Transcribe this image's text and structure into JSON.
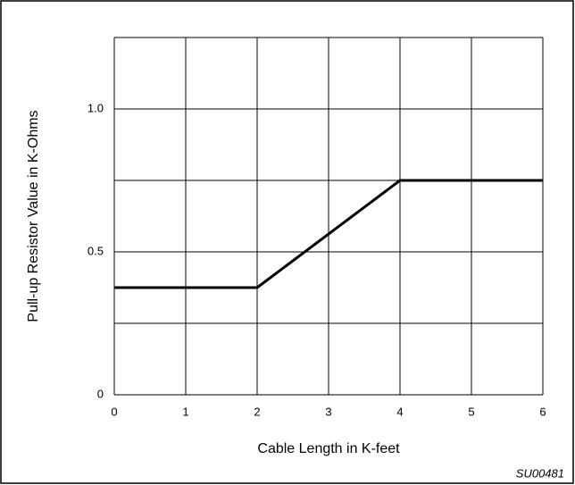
{
  "chart_data": {
    "type": "line",
    "x_label": "Cable Length in K-feet",
    "y_label": "Pull-up Resistor Value in K-Ohms",
    "annotation": "SU00481",
    "x": [
      0,
      2,
      4,
      6
    ],
    "series": [
      {
        "color": "#000000",
        "values": [
          0.375,
          0.375,
          0.75,
          0.75
        ]
      }
    ],
    "xlim": [
      0,
      6
    ],
    "xticks": [
      0,
      1,
      2,
      3,
      4,
      5,
      6
    ],
    "ylim": [
      0,
      1.25
    ],
    "yticks": [
      0,
      0.5,
      {
        "value": 1,
        "label": "1.0"
      }
    ],
    "ygrid": [
      0,
      0.25,
      0.5,
      0.75,
      1,
      1.25
    ],
    "grid": true
  }
}
